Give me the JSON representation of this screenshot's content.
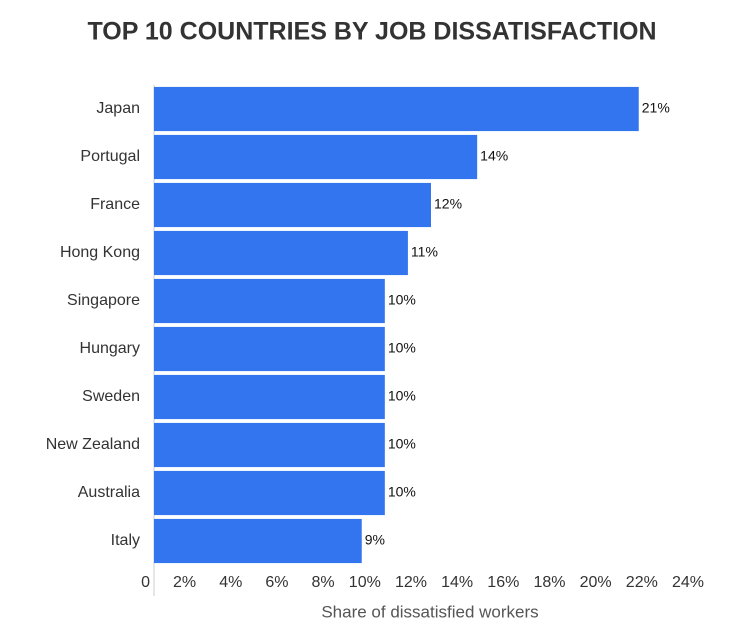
{
  "chart_data": {
    "type": "bar",
    "orientation": "horizontal",
    "title": "TOP 10 COUNTRIES BY JOB DISSATISFACTION",
    "x_label": "Share of dissatisfied workers",
    "categories": [
      "Japan",
      "Portugal",
      "France",
      "Hong Kong",
      "Singapore",
      "Hungary",
      "Sweden",
      "New Zealand",
      "Australia",
      "Italy"
    ],
    "values": [
      21,
      14,
      12,
      11,
      10,
      10,
      10,
      10,
      10,
      9
    ],
    "value_labels": [
      "21%",
      "14%",
      "12%",
      "11%",
      "10%",
      "10%",
      "10%",
      "10%",
      "10%",
      "9%"
    ],
    "color": "#3375ef",
    "xlim": [
      0,
      24
    ],
    "xticks": [
      0,
      {
        "value": 2,
        "label": "2%"
      },
      {
        "value": 4,
        "label": "4%"
      },
      {
        "value": 6,
        "label": "6%"
      },
      {
        "value": 8,
        "label": "8%"
      },
      {
        "value": 10,
        "label": "10%"
      },
      {
        "value": 12,
        "label": "12%"
      },
      {
        "value": 14,
        "label": "14%"
      },
      {
        "value": 16,
        "label": "16%"
      },
      {
        "value": 18,
        "label": "18%"
      },
      {
        "value": 20,
        "label": "20%"
      },
      {
        "value": 22,
        "label": "22%"
      },
      {
        "value": 24,
        "label": "24%"
      }
    ]
  }
}
